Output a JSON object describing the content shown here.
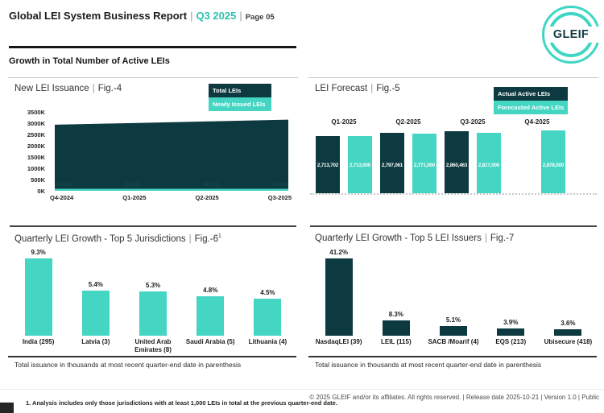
{
  "header": {
    "title": "Global LEI System Business Report",
    "quarter": "Q3 2025",
    "page_label": "Page 05",
    "logo_text": "GLEIF"
  },
  "section": {
    "title": "Growth in Total Number of Active LEIs"
  },
  "ui": {
    "pipe": "|"
  },
  "colors": {
    "dark": "#0d3a40",
    "teal": "#45d5c3",
    "accent_text": "#2fc0ae"
  },
  "chart_data": [
    {
      "id": "fig4",
      "type": "area",
      "title": "New LEI Issuance",
      "fig": "Fig.-4",
      "x": [
        "Q4-2024",
        "Q1-2025",
        "Q2-2025",
        "Q3-2025"
      ],
      "ylim": [
        0,
        3500000
      ],
      "yticks": [
        "3500K",
        "3000K",
        "2500K",
        "2000K",
        "1500K",
        "1000K",
        "500K",
        "0K"
      ],
      "legend_position": "top-right",
      "series": [
        {
          "name": "Total LEIs",
          "color": "dark",
          "values_est": [
            2935000,
            3005000,
            3080000,
            3155000
          ]
        },
        {
          "name": "Newly Issued LEIs",
          "color": "teal",
          "values_est": [
            76000,
            92000,
            96000,
            90000
          ],
          "faint_bar_labels": [
            "76,186",
            "92,231",
            "96,578",
            "90,066"
          ]
        }
      ]
    },
    {
      "id": "fig5",
      "type": "bar",
      "title": "LEI Forecast",
      "fig": "Fig.-5",
      "categories": [
        "Q1-2025",
        "Q2-2025",
        "Q3-2025",
        "Q4-2025"
      ],
      "legend_position": "top-right",
      "series": [
        {
          "name": "Actual Active LEIs",
          "color": "dark",
          "values": [
            2713702,
            2797061,
            2860463,
            null
          ],
          "labels": [
            "2,713,702",
            "2,797,061",
            "2,860,463",
            null
          ]
        },
        {
          "name": "Forecasted Active LEIs",
          "color": "teal",
          "values": [
            2713000,
            2771000,
            2817000,
            2878000
          ],
          "labels": [
            "2,713,000",
            "2,771,000",
            "2,817,000",
            "2,878,000"
          ]
        }
      ]
    },
    {
      "id": "fig6",
      "type": "bar",
      "title": "Quarterly LEI Growth - Top 5 Jurisdictions",
      "fig": "Fig.-6",
      "fig_superscript": "1",
      "categories": [
        "India (295)",
        "Latvia (3)",
        "United Arab Emirates (8)",
        "Saudi Arabia (5)",
        "Lithuania (4)"
      ],
      "values": [
        9.3,
        5.4,
        5.3,
        4.8,
        4.5
      ],
      "labels": [
        "9.3%",
        "5.4%",
        "5.3%",
        "4.8%",
        "4.5%"
      ],
      "bar_color": "teal",
      "caption": "Total issuance in thousands at most recent quarter-end date in parenthesis"
    },
    {
      "id": "fig7",
      "type": "bar",
      "title": "Quarterly LEI Growth - Top 5 LEI Issuers",
      "fig": "Fig.-7",
      "categories": [
        "NasdaqLEI (39)",
        "LEIL (115)",
        "SACB /Moarif (4)",
        "EQS (213)",
        "Ubisecure (418)"
      ],
      "values": [
        41.2,
        8.3,
        5.1,
        3.9,
        3.6
      ],
      "labels": [
        "41.2%",
        "8.3%",
        "5.1%",
        "3.9%",
        "3.6%"
      ],
      "bar_color": "dark",
      "caption": "Total issuance in thousands at most recent quarter-end date in parenthesis"
    }
  ],
  "footer": {
    "footnote": "1. Analysis includes only those jurisdictions with at least 1,000 LEIs in total at the previous quarter-end date.",
    "copyright": "© 2025 GLEIF and/or its affiliates. All rights reserved. | Release date 2025-10-21 | Version 1.0 | Public"
  }
}
